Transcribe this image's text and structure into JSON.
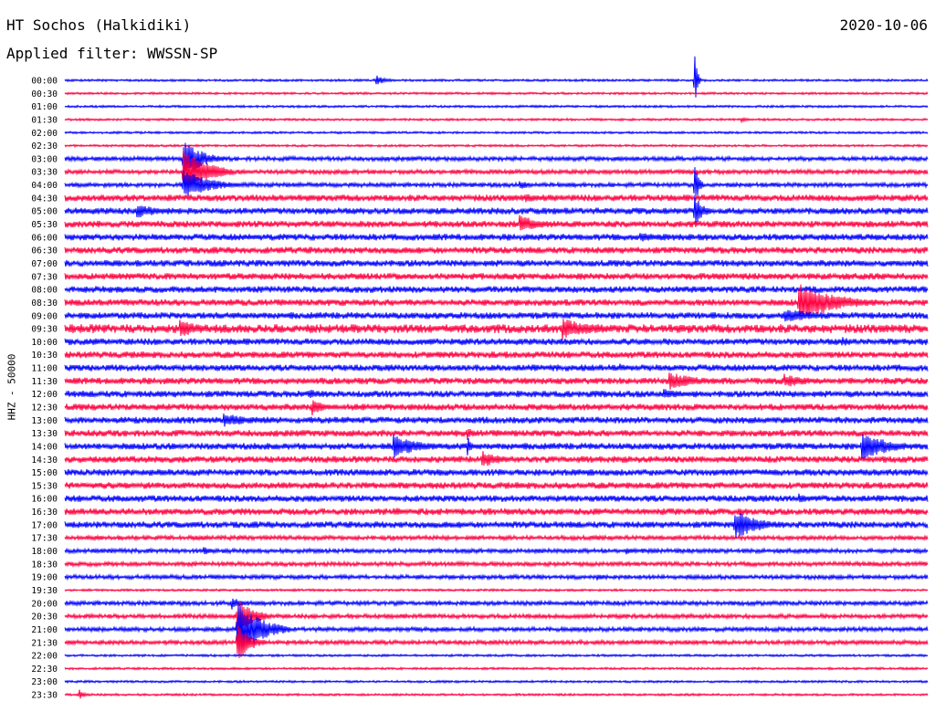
{
  "header": {
    "station": "HT Sochos (Halkidiki)",
    "date": "2020-10-06",
    "filter_label": "Applied filter:",
    "filter_name": "WWSSN-SP"
  },
  "channel_label": "HHZ - 50000",
  "colors": {
    "even_trace": "#0000ff",
    "odd_trace": "#ff0040",
    "text": "#000000"
  },
  "chart_data": {
    "type": "line",
    "description_kind": "helicorder",
    "y_tick_labels": [
      "00:00",
      "00:30",
      "01:00",
      "01:30",
      "02:00",
      "02:30",
      "03:00",
      "03:30",
      "04:00",
      "04:30",
      "05:00",
      "05:30",
      "06:00",
      "06:30",
      "07:00",
      "07:30",
      "08:00",
      "08:30",
      "09:00",
      "09:30",
      "10:00",
      "10:30",
      "11:00",
      "11:30",
      "12:00",
      "12:30",
      "13:00",
      "13:30",
      "14:00",
      "14:30",
      "15:00",
      "15:30",
      "16:00",
      "16:30",
      "17:00",
      "17:30",
      "18:00",
      "18:30",
      "19:00",
      "19:30",
      "20:00",
      "20:30",
      "21:00",
      "21:30",
      "22:00",
      "22:30",
      "23:00",
      "23:30"
    ],
    "row_duration_minutes": 30,
    "x_range_minutes": [
      0,
      30
    ],
    "noise_level_per_row": [
      1,
      1,
      1,
      1,
      1,
      1,
      2,
      2,
      2,
      3,
      3,
      3,
      3,
      3,
      3,
      3,
      3,
      3,
      3,
      4,
      3,
      3,
      3,
      3,
      3,
      3,
      3,
      3,
      3,
      3,
      3,
      3,
      3,
      3,
      3,
      2,
      2,
      2,
      2,
      1,
      2,
      2,
      2,
      2,
      1,
      1,
      1,
      1
    ],
    "events": [
      {
        "row": 0,
        "minute": 10.8,
        "amp": 6,
        "dur": 0.8
      },
      {
        "row": 0,
        "minute": 21.9,
        "amp": 36,
        "dur": 0.2
      },
      {
        "row": 3,
        "minute": 23.5,
        "amp": 3,
        "dur": 0.6
      },
      {
        "row": 6,
        "minute": 4.1,
        "amp": 22,
        "dur": 1.5
      },
      {
        "row": 7,
        "minute": 4.1,
        "amp": 28,
        "dur": 1.8
      },
      {
        "row": 8,
        "minute": 4.1,
        "amp": 18,
        "dur": 2.0
      },
      {
        "row": 8,
        "minute": 15.8,
        "amp": 6,
        "dur": 0.8
      },
      {
        "row": 8,
        "minute": 21.9,
        "amp": 26,
        "dur": 0.3
      },
      {
        "row": 9,
        "minute": 16.0,
        "amp": 5,
        "dur": 1.8
      },
      {
        "row": 10,
        "minute": 21.9,
        "amp": 20,
        "dur": 0.6
      },
      {
        "row": 10,
        "minute": 2.5,
        "amp": 8,
        "dur": 2.0
      },
      {
        "row": 11,
        "minute": 15.8,
        "amp": 10,
        "dur": 2.0
      },
      {
        "row": 12,
        "minute": 20.0,
        "amp": 6,
        "dur": 2.0
      },
      {
        "row": 17,
        "minute": 25.5,
        "amp": 22,
        "dur": 3.0
      },
      {
        "row": 18,
        "minute": 25.0,
        "amp": 8,
        "dur": 3.0
      },
      {
        "row": 19,
        "minute": 4.0,
        "amp": 10,
        "dur": 1.8
      },
      {
        "row": 19,
        "minute": 17.3,
        "amp": 12,
        "dur": 2.5
      },
      {
        "row": 20,
        "minute": 27.0,
        "amp": 6,
        "dur": 1.0
      },
      {
        "row": 22,
        "minute": 19.3,
        "amp": 5,
        "dur": 0.8
      },
      {
        "row": 23,
        "minute": 21.0,
        "amp": 10,
        "dur": 2.5
      },
      {
        "row": 23,
        "minute": 25.0,
        "amp": 8,
        "dur": 2.0
      },
      {
        "row": 23,
        "minute": 28.5,
        "amp": 6,
        "dur": 0.5
      },
      {
        "row": 24,
        "minute": 20.8,
        "amp": 6,
        "dur": 1.8
      },
      {
        "row": 24,
        "minute": 8.5,
        "amp": 6,
        "dur": 1.2
      },
      {
        "row": 25,
        "minute": 8.6,
        "amp": 10,
        "dur": 1.0
      },
      {
        "row": 26,
        "minute": 5.5,
        "amp": 8,
        "dur": 2.5
      },
      {
        "row": 27,
        "minute": 14.0,
        "amp": 10,
        "dur": 0.3
      },
      {
        "row": 28,
        "minute": 11.4,
        "amp": 14,
        "dur": 2.0
      },
      {
        "row": 28,
        "minute": 27.7,
        "amp": 18,
        "dur": 2.0
      },
      {
        "row": 28,
        "minute": 14.0,
        "amp": 12,
        "dur": 0.3
      },
      {
        "row": 29,
        "minute": 14.5,
        "amp": 10,
        "dur": 1.5
      },
      {
        "row": 32,
        "minute": 25.5,
        "amp": 6,
        "dur": 1.0
      },
      {
        "row": 33,
        "minute": 11.4,
        "amp": 6,
        "dur": 1.0
      },
      {
        "row": 34,
        "minute": 23.3,
        "amp": 16,
        "dur": 2.0
      },
      {
        "row": 36,
        "minute": 4.8,
        "amp": 5,
        "dur": 0.8
      },
      {
        "row": 36,
        "minute": 19.5,
        "amp": 5,
        "dur": 0.8
      },
      {
        "row": 38,
        "minute": 18.5,
        "amp": 5,
        "dur": 0.6
      },
      {
        "row": 40,
        "minute": 5.8,
        "amp": 8,
        "dur": 0.8
      },
      {
        "row": 41,
        "minute": 6.0,
        "amp": 22,
        "dur": 1.2
      },
      {
        "row": 42,
        "minute": 6.0,
        "amp": 32,
        "dur": 1.8
      },
      {
        "row": 43,
        "minute": 6.0,
        "amp": 22,
        "dur": 1.0
      },
      {
        "row": 47,
        "minute": 0.5,
        "amp": 6,
        "dur": 0.4
      }
    ]
  }
}
